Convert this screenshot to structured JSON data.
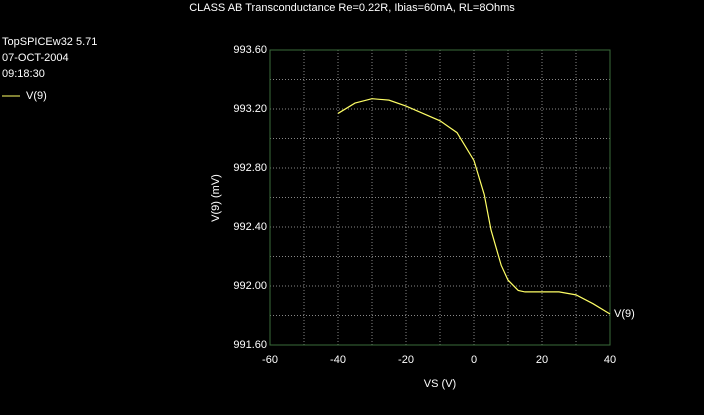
{
  "chart_data": {
    "type": "line",
    "title": "CLASS AB Transconductance Re=0.22R, Ibias=60mA, RL=8Ohms",
    "info": [
      "TopSPICEw32 5.71",
      "07-OCT-2004",
      "09:18:30"
    ],
    "x_label": "VS  (V)",
    "y_label": "V(9)  (mV)",
    "x": [
      -40,
      -35,
      -30,
      -25,
      -20,
      -15,
      -10,
      -5,
      0,
      3,
      5,
      8,
      10,
      13,
      15,
      20,
      25,
      30,
      35,
      40
    ],
    "series": [
      {
        "name": "V(9)",
        "color": "#ffff66",
        "values": [
          993.17,
          993.24,
          993.27,
          993.26,
          993.22,
          993.17,
          993.12,
          993.04,
          992.85,
          992.62,
          992.38,
          992.14,
          992.04,
          991.97,
          991.96,
          991.96,
          991.96,
          991.94,
          991.88,
          991.81
        ]
      }
    ],
    "xlim": [
      -60,
      40
    ],
    "xticks": [
      -60,
      -40,
      -20,
      0,
      20,
      40
    ],
    "ylim": [
      991.6,
      993.6
    ],
    "yticks": [
      {
        "value": 991.6,
        "label": "991.60"
      },
      {
        "value": 992.0,
        "label": "992.00"
      },
      {
        "value": 992.4,
        "label": "992.40"
      },
      {
        "value": 992.8,
        "label": "992.80"
      },
      {
        "value": 993.2,
        "label": "993.20"
      },
      {
        "value": 993.6,
        "label": "993.60"
      }
    ],
    "grid": true
  }
}
